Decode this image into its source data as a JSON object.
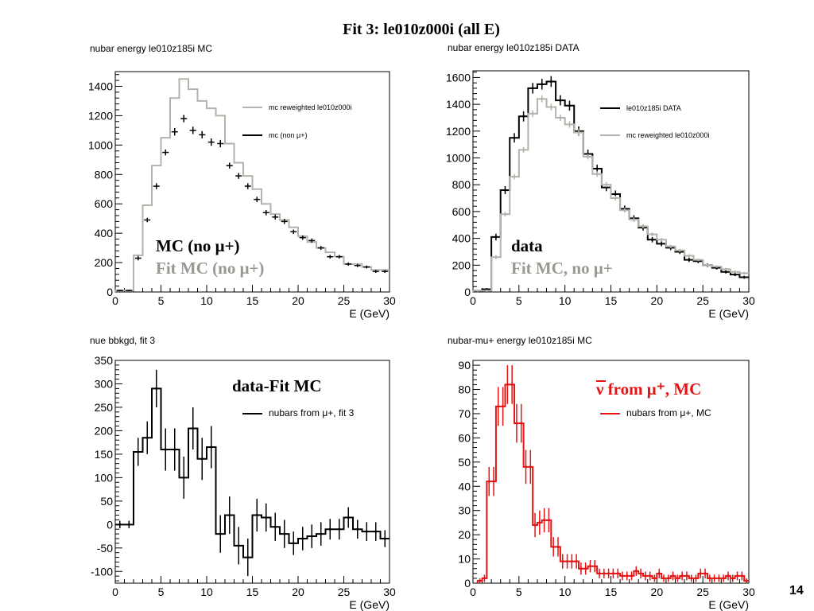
{
  "slide": {
    "title": "Fit 3: le010z000i (all E)",
    "page_number": "14"
  },
  "colors": {
    "black": "#000000",
    "grey": "#b5b2ab",
    "red": "#e41414"
  },
  "chart_data": [
    {
      "id": "p1",
      "type": "histogram",
      "title": "nubar energy le010z185i MC",
      "xlabel": "E (GeV)",
      "ylabel": "",
      "xlim": [
        0,
        30
      ],
      "ylim": [
        0,
        1500
      ],
      "xticks": [
        0,
        5,
        10,
        15,
        20,
        25,
        30
      ],
      "yticks": [
        0,
        200,
        400,
        600,
        800,
        1000,
        1200,
        1400
      ],
      "bin_width": 1,
      "legend": {
        "position": "right",
        "entries": [
          {
            "label": "mc reweighted le010z000i",
            "color": "#b5b2ab"
          },
          {
            "label": "mc (non μ+)",
            "color": "#000000"
          }
        ]
      },
      "annotations": [
        {
          "text": "MC (no μ+)",
          "color": "#000000"
        },
        {
          "text": "Fit MC (no μ+)",
          "color": "#9a9790"
        }
      ],
      "series": [
        {
          "name": "mc reweighted le010z000i",
          "style": "step",
          "color": "#b5b2ab",
          "x": [
            0.5,
            1.5,
            2.5,
            3.5,
            4.5,
            5.5,
            6.5,
            7.5,
            8.5,
            9.5,
            10.5,
            11.5,
            12.5,
            13.5,
            14.5,
            15.5,
            16.5,
            17.5,
            18.5,
            19.5,
            20.5,
            21.5,
            22.5,
            23.5,
            24.5,
            25.5,
            26.5,
            27.5,
            28.5,
            29.5
          ],
          "values": [
            10,
            10,
            250,
            590,
            860,
            1050,
            1320,
            1450,
            1380,
            1300,
            1250,
            1200,
            1010,
            880,
            790,
            700,
            600,
            530,
            490,
            440,
            380,
            340,
            300,
            270,
            240,
            190,
            190,
            170,
            150,
            150
          ]
        },
        {
          "name": "mc (non μ+)",
          "style": "points",
          "color": "#000000",
          "x": [
            0.5,
            1.5,
            2.5,
            3.5,
            4.5,
            5.5,
            6.5,
            7.5,
            8.5,
            9.5,
            10.5,
            11.5,
            12.5,
            13.5,
            14.5,
            15.5,
            16.5,
            17.5,
            18.5,
            19.5,
            20.5,
            21.5,
            22.5,
            23.5,
            24.5,
            25.5,
            26.5,
            27.5,
            28.5,
            29.5
          ],
          "values": [
            10,
            10,
            230,
            490,
            720,
            950,
            1090,
            1180,
            1100,
            1070,
            1020,
            1010,
            860,
            790,
            720,
            630,
            540,
            510,
            480,
            410,
            370,
            350,
            300,
            240,
            240,
            190,
            180,
            170,
            140,
            140
          ],
          "errors": [
            5,
            5,
            15,
            15,
            20,
            20,
            25,
            25,
            25,
            25,
            25,
            25,
            20,
            20,
            20,
            18,
            18,
            17,
            17,
            15,
            15,
            14,
            13,
            12,
            12,
            11,
            11,
            10,
            10,
            10
          ]
        }
      ]
    },
    {
      "id": "p2",
      "type": "histogram",
      "title": "nubar energy le010z185i DATA",
      "xlabel": "E (GeV)",
      "ylabel": "",
      "xlim": [
        0,
        30
      ],
      "ylim": [
        0,
        1650
      ],
      "xticks": [
        0,
        5,
        10,
        15,
        20,
        25,
        30
      ],
      "yticks": [
        0,
        200,
        400,
        600,
        800,
        1000,
        1200,
        1400,
        1600
      ],
      "bin_width": 1,
      "legend": {
        "position": "right",
        "entries": [
          {
            "label": "le010z185i DATA",
            "color": "#000000"
          },
          {
            "label": "mc reweighted le010z000i",
            "color": "#b5b2ab"
          }
        ]
      },
      "annotations": [
        {
          "text": "data",
          "color": "#000000"
        },
        {
          "text": "Fit MC, no μ+",
          "color": "#9a9790"
        }
      ],
      "series": [
        {
          "name": "le010z185i DATA",
          "style": "step-err",
          "color": "#000000",
          "x": [
            0.5,
            1.5,
            2.5,
            3.5,
            4.5,
            5.5,
            6.5,
            7.5,
            8.5,
            9.5,
            10.5,
            11.5,
            12.5,
            13.5,
            14.5,
            15.5,
            16.5,
            17.5,
            18.5,
            19.5,
            20.5,
            21.5,
            22.5,
            23.5,
            24.5,
            25.5,
            26.5,
            27.5,
            28.5,
            29.5
          ],
          "values": [
            10,
            20,
            410,
            760,
            1150,
            1310,
            1520,
            1550,
            1570,
            1430,
            1390,
            1200,
            1030,
            920,
            780,
            730,
            620,
            550,
            480,
            390,
            360,
            330,
            300,
            240,
            230,
            200,
            180,
            150,
            130,
            110
          ],
          "errors": [
            5,
            8,
            25,
            30,
            35,
            38,
            40,
            40,
            40,
            38,
            37,
            35,
            32,
            30,
            28,
            27,
            25,
            23,
            22,
            20,
            19,
            18,
            17,
            16,
            15,
            14,
            13,
            12,
            12,
            11
          ]
        },
        {
          "name": "mc reweighted le010z000i",
          "style": "step-err",
          "color": "#b5b2ab",
          "x": [
            0.5,
            1.5,
            2.5,
            3.5,
            4.5,
            5.5,
            6.5,
            7.5,
            8.5,
            9.5,
            10.5,
            11.5,
            12.5,
            13.5,
            14.5,
            15.5,
            16.5,
            17.5,
            18.5,
            19.5,
            20.5,
            21.5,
            22.5,
            23.5,
            24.5,
            25.5,
            26.5,
            27.5,
            28.5,
            29.5
          ],
          "values": [
            10,
            10,
            260,
            580,
            860,
            1060,
            1330,
            1440,
            1380,
            1300,
            1250,
            1190,
            1010,
            880,
            800,
            700,
            610,
            540,
            490,
            430,
            390,
            340,
            310,
            270,
            240,
            200,
            190,
            170,
            150,
            140
          ],
          "errors": [
            4,
            4,
            15,
            18,
            20,
            22,
            25,
            25,
            25,
            24,
            24,
            23,
            21,
            20,
            19,
            18,
            17,
            16,
            15,
            14,
            14,
            13,
            12,
            12,
            11,
            10,
            10,
            10,
            9,
            9
          ]
        }
      ]
    },
    {
      "id": "p3",
      "type": "histogram",
      "title": "nue bbkgd, fit 3",
      "xlabel": "E (GeV)",
      "ylabel": "",
      "xlim": [
        0,
        30
      ],
      "ylim": [
        -125,
        350
      ],
      "xticks": [
        0,
        5,
        10,
        15,
        20,
        25,
        30
      ],
      "yticks": [
        -100,
        -50,
        0,
        50,
        100,
        150,
        200,
        250,
        300,
        350
      ],
      "bin_width": 1,
      "legend": {
        "position": "right",
        "entries": [
          {
            "label": "nubars from μ+, fit 3",
            "color": "#000000"
          }
        ]
      },
      "annotations": [
        {
          "text": "data-Fit MC",
          "color": "#000000"
        }
      ],
      "series": [
        {
          "name": "nubars from μ+, fit 3",
          "style": "step-err",
          "color": "#000000",
          "x": [
            0.5,
            1.5,
            2.5,
            3.5,
            4.5,
            5.5,
            6.5,
            7.5,
            8.5,
            9.5,
            10.5,
            11.5,
            12.5,
            13.5,
            14.5,
            15.5,
            16.5,
            17.5,
            18.5,
            19.5,
            20.5,
            21.5,
            22.5,
            23.5,
            24.5,
            25.5,
            26.5,
            27.5,
            28.5,
            29.5
          ],
          "values": [
            0,
            0,
            155,
            185,
            290,
            160,
            160,
            100,
            205,
            140,
            165,
            -20,
            20,
            -45,
            -70,
            20,
            15,
            -5,
            -20,
            -40,
            -30,
            -25,
            -20,
            -10,
            -10,
            15,
            -10,
            -15,
            -15,
            -30
          ],
          "errors": [
            8,
            8,
            30,
            35,
            40,
            45,
            45,
            45,
            45,
            45,
            45,
            40,
            40,
            40,
            40,
            35,
            30,
            30,
            30,
            25,
            25,
            25,
            25,
            22,
            22,
            22,
            20,
            20,
            20,
            18
          ]
        }
      ]
    },
    {
      "id": "p4",
      "type": "histogram",
      "title": "nubar-mu+ energy le010z185i MC",
      "xlabel": "E (GeV)",
      "ylabel": "",
      "xlim": [
        0,
        30
      ],
      "ylim": [
        0,
        92
      ],
      "xticks": [
        0,
        5,
        10,
        15,
        20,
        25,
        30
      ],
      "yticks": [
        0,
        10,
        20,
        30,
        40,
        50,
        60,
        70,
        80,
        90
      ],
      "bin_width": 0.5,
      "legend": {
        "position": "right",
        "entries": [
          {
            "label": "nubars from μ+, MC",
            "color": "#e41414"
          }
        ]
      },
      "annotations": [
        {
          "text": "ν from μ⁺, MC",
          "color": "#e41414"
        }
      ],
      "series": [
        {
          "name": "nubars from μ+, MC",
          "style": "step-err",
          "color": "#e41414",
          "x": [
            0.75,
            1.25,
            1.75,
            2.25,
            2.75,
            3.25,
            3.75,
            4.25,
            4.75,
            5.25,
            5.75,
            6.25,
            6.75,
            7.25,
            7.75,
            8.25,
            8.75,
            9.25,
            9.75,
            10.25,
            10.75,
            11.25,
            11.75,
            12.25,
            12.75,
            13.25,
            13.75,
            14.25,
            14.75,
            15.25,
            15.75,
            16.25,
            16.75,
            17.25,
            17.75,
            18.25,
            18.75,
            19.25,
            19.75,
            20.25,
            20.75,
            21.25,
            21.75,
            22.25,
            22.75,
            23.25,
            23.75,
            24.25,
            24.75,
            25.25,
            25.75,
            26.25,
            26.75,
            27.25,
            27.75,
            28.25,
            28.75,
            29.25,
            29.75
          ],
          "values": [
            1,
            2,
            42,
            42,
            73,
            73,
            82,
            82,
            66,
            66,
            48,
            48,
            24,
            25,
            26,
            26,
            15,
            15,
            9,
            9,
            9,
            9,
            6,
            6,
            7,
            7,
            4,
            4,
            4,
            4,
            4,
            3,
            3,
            3,
            5,
            4,
            3,
            3,
            2,
            4,
            2,
            2,
            3,
            2,
            3,
            3,
            2,
            2,
            4,
            4,
            2,
            2,
            2,
            2,
            3,
            2,
            3,
            3,
            1
          ],
          "errors": [
            1,
            1.5,
            6,
            6,
            8,
            8,
            8,
            8,
            8,
            8,
            7,
            7,
            5,
            5,
            5,
            5,
            4,
            4,
            3,
            3,
            3,
            3,
            2.5,
            2.5,
            2.5,
            2.5,
            2,
            2,
            2,
            2,
            2,
            1.8,
            1.8,
            1.8,
            2,
            2,
            1.8,
            1.8,
            1.5,
            2,
            1.5,
            1.5,
            1.8,
            1.5,
            1.8,
            1.8,
            1.5,
            1.5,
            2,
            2,
            1.5,
            1.5,
            1.5,
            1.5,
            1.8,
            1.5,
            1.8,
            1.8,
            1
          ]
        }
      ]
    }
  ]
}
